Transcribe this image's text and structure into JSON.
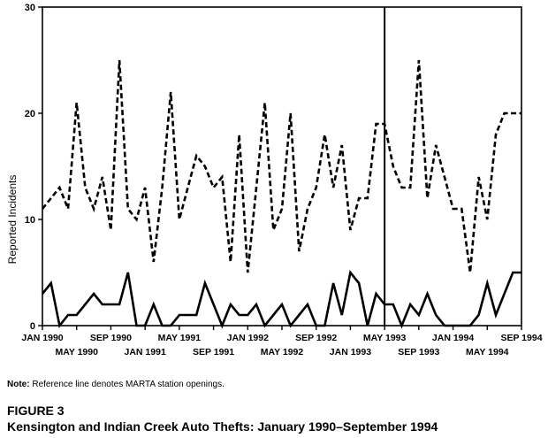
{
  "chart_data": {
    "type": "line",
    "ylabel": "Reported Incidents",
    "ylim": [
      0,
      30
    ],
    "yticks": [
      0,
      10,
      20,
      30
    ],
    "x_start": "JAN 1990",
    "x_months": 57,
    "xtick_labels_upper": [
      "JAN 1990",
      "SEP 1990",
      "MAY 1991",
      "JAN 1992",
      "SEP 1992",
      "MAY 1993",
      "JAN 1994",
      "SEP 1994"
    ],
    "xtick_labels_lower": [
      "MAY 1990",
      "JAN 1991",
      "SEP 1991",
      "MAY 1992",
      "JAN 1993",
      "SEP 1993",
      "MAY 1994"
    ],
    "reference_line": "MAY 1993",
    "series": [
      {
        "style": "dashed",
        "values": [
          11,
          12,
          13,
          11,
          21,
          13,
          11,
          14,
          9,
          25,
          11,
          10,
          13,
          6,
          13,
          22,
          10,
          13,
          16,
          15,
          13,
          14,
          6,
          18,
          5,
          13,
          21,
          9,
          11,
          20,
          7,
          11,
          13,
          18,
          13,
          17,
          9,
          12,
          12,
          19,
          19,
          15,
          13,
          13,
          25,
          12,
          17,
          14,
          11,
          11,
          5,
          14,
          10,
          18,
          20,
          20,
          20
        ]
      },
      {
        "style": "solid",
        "values": [
          3,
          4,
          0,
          1,
          1,
          2,
          3,
          2,
          2,
          2,
          5,
          0,
          0,
          2,
          0,
          0,
          1,
          1,
          1,
          4,
          2,
          0,
          2,
          1,
          1,
          2,
          0,
          1,
          2,
          0,
          1,
          2,
          0,
          0,
          4,
          1,
          5,
          4,
          0,
          3,
          2,
          2,
          0,
          2,
          1,
          3,
          1,
          0,
          0,
          0,
          0,
          1,
          4,
          1,
          3,
          5,
          5
        ]
      }
    ]
  },
  "note": {
    "label": "Note:",
    "text": "Reference line denotes MARTA station openings."
  },
  "figure": {
    "label": "FIGURE 3",
    "title": "Kensington and Indian Creek Auto Thefts: January 1990–September 1994"
  }
}
